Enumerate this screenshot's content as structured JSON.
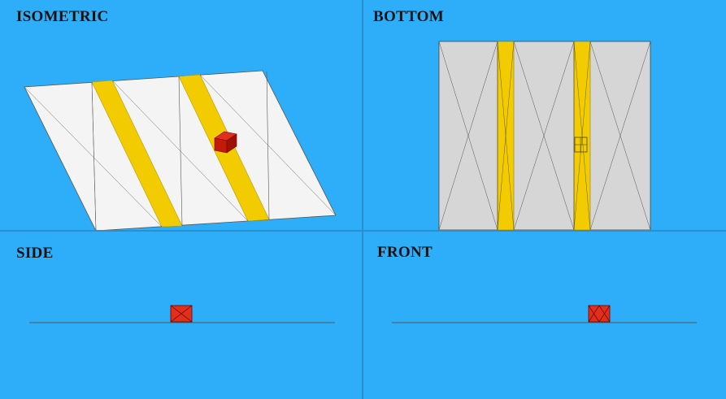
{
  "viewports": {
    "isometric": {
      "label": "ISOMETRIC"
    },
    "bottom": {
      "label": "BOTTOM"
    },
    "side": {
      "label": "SIDE"
    },
    "front": {
      "label": "FRONT"
    }
  },
  "colors": {
    "background": "#2eaef8",
    "plate_face": "#f4f4f4",
    "plate_bottom": "#d6d6d6",
    "stripe": "#f2cc00",
    "stripe_dark": "#c9a800",
    "cube": "#d91e0c",
    "cube_dark": "#9e1206",
    "edge": "#333333"
  }
}
